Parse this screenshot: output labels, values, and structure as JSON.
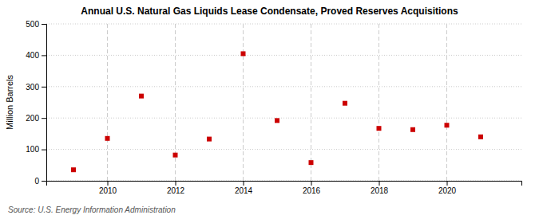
{
  "chart_data": {
    "type": "scatter",
    "title": "Annual U.S. Natural Gas Liquids Lease Condensate, Proved Reserves Acquisitions",
    "ylabel": "Million Barrels",
    "source": "Source: U.S. Energy Information Administration",
    "x": [
      2009,
      2010,
      2011,
      2012,
      2013,
      2014,
      2015,
      2016,
      2017,
      2018,
      2019,
      2020,
      2021
    ],
    "values": [
      35,
      135,
      270,
      82,
      133,
      405,
      192,
      58,
      247,
      167,
      163,
      177,
      140
    ],
    "color": "#cc0000",
    "marker": "square",
    "xlim": [
      2008.2,
      2022.2
    ],
    "xticks": [
      2010,
      2012,
      2014,
      2016,
      2018,
      2020
    ],
    "ylim": [
      0,
      500
    ],
    "yticks": [
      0,
      100,
      200,
      300,
      400,
      500
    ],
    "grid": true
  }
}
